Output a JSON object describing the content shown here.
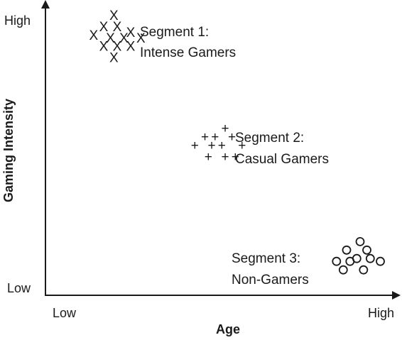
{
  "chart_data": {
    "type": "scatter",
    "title": "",
    "xlabel": "Age",
    "ylabel": "Gaming Intensity",
    "xlim": [
      0,
      100
    ],
    "ylim": [
      0,
      100
    ],
    "x_tick_labels": {
      "low": "Low",
      "high": "High"
    },
    "y_tick_labels": {
      "low": "Low",
      "high": "High"
    },
    "grid": false,
    "legend": "none",
    "series": [
      {
        "label_lines": [
          "Segment 1:",
          "Intense Gamers"
        ],
        "marker": "X",
        "points": [
          [
            19,
            98
          ],
          [
            16,
            94
          ],
          [
            20,
            94
          ],
          [
            24,
            92
          ],
          [
            13,
            91
          ],
          [
            18,
            90
          ],
          [
            22,
            90
          ],
          [
            27,
            90
          ],
          [
            16,
            87
          ],
          [
            20,
            87
          ],
          [
            24,
            87
          ],
          [
            19,
            83
          ]
        ]
      },
      {
        "label_lines": [
          "Segment 2:",
          "Casual Gamers"
        ],
        "marker": "+",
        "points": [
          [
            52,
            58
          ],
          [
            46,
            55
          ],
          [
            49,
            55
          ],
          [
            54,
            55
          ],
          [
            43,
            52
          ],
          [
            48,
            52
          ],
          [
            51,
            52
          ],
          [
            57,
            52
          ],
          [
            47,
            48
          ],
          [
            52,
            48
          ],
          [
            55,
            48
          ]
        ]
      },
      {
        "label_lines": [
          "Segment 3:",
          "Non-Gamers"
        ],
        "marker": "O",
        "points": [
          [
            92,
            18
          ],
          [
            88,
            15
          ],
          [
            94,
            15
          ],
          [
            91,
            12
          ],
          [
            95,
            12
          ],
          [
            85,
            11
          ],
          [
            89,
            11
          ],
          [
            98,
            11
          ],
          [
            87,
            8
          ],
          [
            93,
            8
          ]
        ]
      }
    ]
  }
}
